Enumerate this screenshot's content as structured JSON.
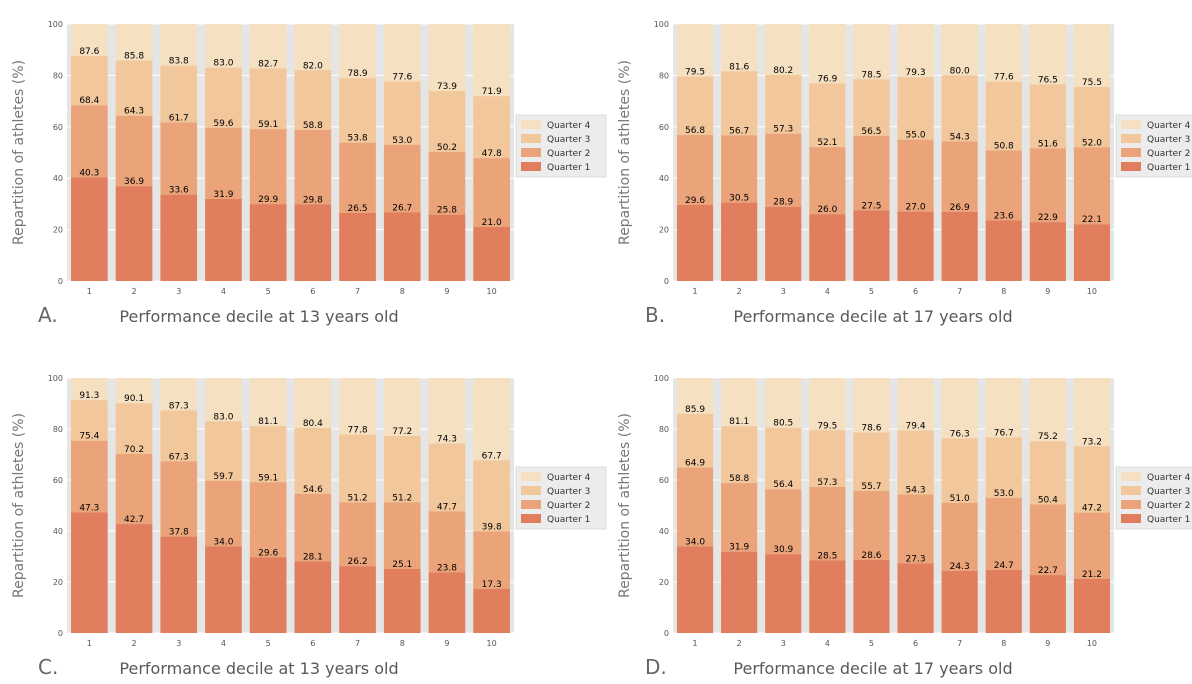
{
  "colors": {
    "q1": "#e07e5e",
    "q2": "#eba47a",
    "q3": "#f2c79b",
    "q4": "#f6e0c2",
    "panel_bg": "#e5e5e5",
    "grid": "#ffffff",
    "text": "#000000",
    "axis_text": "#555555",
    "xlabel_text": "#595959"
  },
  "chart_data": [
    {
      "type": "bar",
      "stacked": true,
      "panel_label": "A.",
      "xlabel": "Performance decile at 13 years old",
      "ylabel": "Repartition of athletes (%)",
      "ylim": [
        0,
        100
      ],
      "yticks": [
        "0",
        "20",
        "40",
        "60",
        "80",
        "100"
      ],
      "categories": [
        "1",
        "2",
        "3",
        "4",
        "5",
        "6",
        "7",
        "8",
        "9",
        "10"
      ],
      "grid": true,
      "legend_position": "right",
      "legend": [
        "Quarter 4",
        "Quarter 3",
        "Quarter 2",
        "Quarter 1"
      ],
      "cumulative_labels": {
        "quarter_1": [
          "40.3",
          "36.9",
          "33.6",
          "31.9",
          "29.9",
          "29.8",
          "26.5",
          "26.7",
          "25.8",
          "21.0"
        ],
        "quarter_2": [
          "68.4",
          "64.3",
          "61.7",
          "59.6",
          "59.1",
          "58.8",
          "53.8",
          "53.0",
          "50.2",
          "47.8"
        ],
        "quarter_3": [
          "87.6",
          "85.8",
          "83.8",
          "83.0",
          "82.7",
          "82.0",
          "78.9",
          "77.6",
          "73.9",
          "71.9"
        ]
      }
    },
    {
      "type": "bar",
      "stacked": true,
      "panel_label": "B.",
      "xlabel": "Performance decile at 17 years old",
      "ylabel": "Repartition of athletes (%)",
      "ylim": [
        0,
        100
      ],
      "yticks": [
        "0",
        "20",
        "40",
        "60",
        "80",
        "100"
      ],
      "categories": [
        "1",
        "2",
        "3",
        "4",
        "5",
        "6",
        "7",
        "8",
        "9",
        "10"
      ],
      "grid": true,
      "legend_position": "right",
      "legend": [
        "Quarter 4",
        "Quarter 3",
        "Quarter 2",
        "Quarter 1"
      ],
      "cumulative_labels": {
        "quarter_1": [
          "29.6",
          "30.5",
          "28.9",
          "26.0",
          "27.5",
          "27.0",
          "26.9",
          "23.6",
          "22.9",
          "22.1"
        ],
        "quarter_2": [
          "56.8",
          "56.7",
          "57.3",
          "52.1",
          "56.5",
          "55.0",
          "54.3",
          "50.8",
          "51.6",
          "52.0"
        ],
        "quarter_3": [
          "79.5",
          "81.6",
          "80.2",
          "76.9",
          "78.5",
          "79.3",
          "80.0",
          "77.6",
          "76.5",
          "75.5"
        ]
      }
    },
    {
      "type": "bar",
      "stacked": true,
      "panel_label": "C.",
      "xlabel": "Performance decile at 13 years old",
      "ylabel": "Repartition of athletes (%)",
      "ylim": [
        0,
        100
      ],
      "yticks": [
        "0",
        "20",
        "40",
        "60",
        "80",
        "100"
      ],
      "categories": [
        "1",
        "2",
        "3",
        "4",
        "5",
        "6",
        "7",
        "8",
        "9",
        "10"
      ],
      "grid": true,
      "legend_position": "right",
      "legend": [
        "Quarter 4",
        "Quarter 3",
        "Quarter 2",
        "Quarter 1"
      ],
      "cumulative_labels": {
        "quarter_1": [
          "47.3",
          "42.7",
          "37.8",
          "34.0",
          "29.6",
          "28.1",
          "26.2",
          "25.1",
          "23.8",
          "17.3"
        ],
        "quarter_2": [
          "75.4",
          "70.2",
          "67.3",
          "59.7",
          "59.1",
          "54.6",
          "51.2",
          "51.2",
          "47.7",
          "39.8"
        ],
        "quarter_3": [
          "91.3",
          "90.1",
          "87.3",
          "83.0",
          "81.1",
          "80.4",
          "77.8",
          "77.2",
          "74.3",
          "67.7"
        ]
      }
    },
    {
      "type": "bar",
      "stacked": true,
      "panel_label": "D.",
      "xlabel": "Performance decile at 17 years old",
      "ylabel": "Repartition of athletes (%)",
      "ylim": [
        0,
        100
      ],
      "yticks": [
        "0",
        "20",
        "40",
        "60",
        "80",
        "100"
      ],
      "categories": [
        "1",
        "2",
        "3",
        "4",
        "5",
        "6",
        "7",
        "8",
        "9",
        "10"
      ],
      "grid": true,
      "legend_position": "right",
      "legend": [
        "Quarter 4",
        "Quarter 3",
        "Quarter 2",
        "Quarter 1"
      ],
      "cumulative_labels": {
        "quarter_1": [
          "34.0",
          "31.9",
          "30.9",
          "28.5",
          "28.6",
          "27.3",
          "24.3",
          "24.7",
          "22.7",
          "21.2"
        ],
        "quarter_2": [
          "64.9",
          "58.8",
          "56.4",
          "57.3",
          "55.7",
          "54.3",
          "51.0",
          "53.0",
          "50.4",
          "47.2"
        ],
        "quarter_3": [
          "85.9",
          "81.1",
          "80.5",
          "79.5",
          "78.6",
          "79.4",
          "76.3",
          "76.7",
          "75.2",
          "73.2"
        ]
      }
    }
  ]
}
